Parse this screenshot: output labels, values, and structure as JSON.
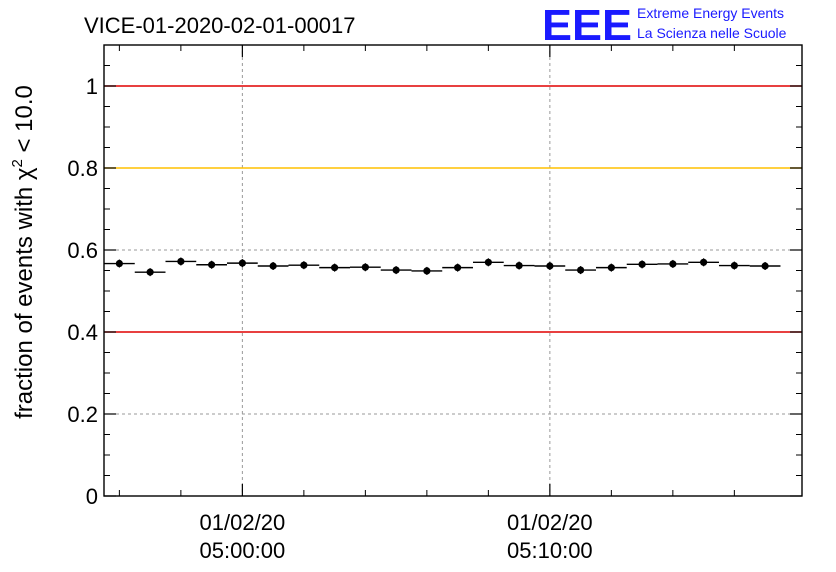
{
  "logo": {
    "mark": "EEE",
    "line1": "Extreme Energy Events",
    "line2": "La Scienza nelle Scuole",
    "color": "#1a1aff"
  },
  "chart_data": {
    "type": "scatter",
    "title": "VICE-01-2020-02-01-00017",
    "ylabel_prefix": "fraction of events with ",
    "ylabel_chi": "χ",
    "ylabel_sup": "2",
    "ylabel_suffix": " < 10.0",
    "ylim": [
      0,
      1.1
    ],
    "yticks": [
      "0",
      "0.2",
      "0.4",
      "0.6",
      "0.8",
      "1"
    ],
    "ytick_values": [
      0,
      0.2,
      0.4,
      0.6,
      0.8,
      1.0
    ],
    "xlim_minutes": [
      -4.0,
      17.7
    ],
    "xticks": [
      {
        "minutes": 0,
        "date": "01/02/20",
        "time": "05:00:00"
      },
      {
        "minutes": 10,
        "date": "01/02/20",
        "time": "05:10:00"
      }
    ],
    "grid": true,
    "reference_lines": [
      {
        "y": 1.0,
        "color": "#e00000"
      },
      {
        "y": 0.8,
        "color": "#ffc000"
      },
      {
        "y": 0.4,
        "color": "#e00000"
      }
    ],
    "bin_width_minutes": 1.0,
    "series": [
      {
        "color": "#000000",
        "x_minutes": [
          -4.0,
          -3.0,
          -2.0,
          -1.0,
          0.0,
          1.0,
          2.0,
          3.0,
          4.0,
          5.0,
          6.0,
          7.0,
          8.0,
          9.0,
          10.0,
          11.0,
          12.0,
          13.0,
          14.0,
          15.0,
          16.0,
          17.0
        ],
        "values": [
          0.567,
          0.546,
          0.572,
          0.564,
          0.568,
          0.561,
          0.563,
          0.557,
          0.558,
          0.551,
          0.549,
          0.557,
          0.57,
          0.562,
          0.561,
          0.551,
          0.557,
          0.565,
          0.566,
          0.57,
          0.562,
          0.561
        ]
      }
    ]
  }
}
